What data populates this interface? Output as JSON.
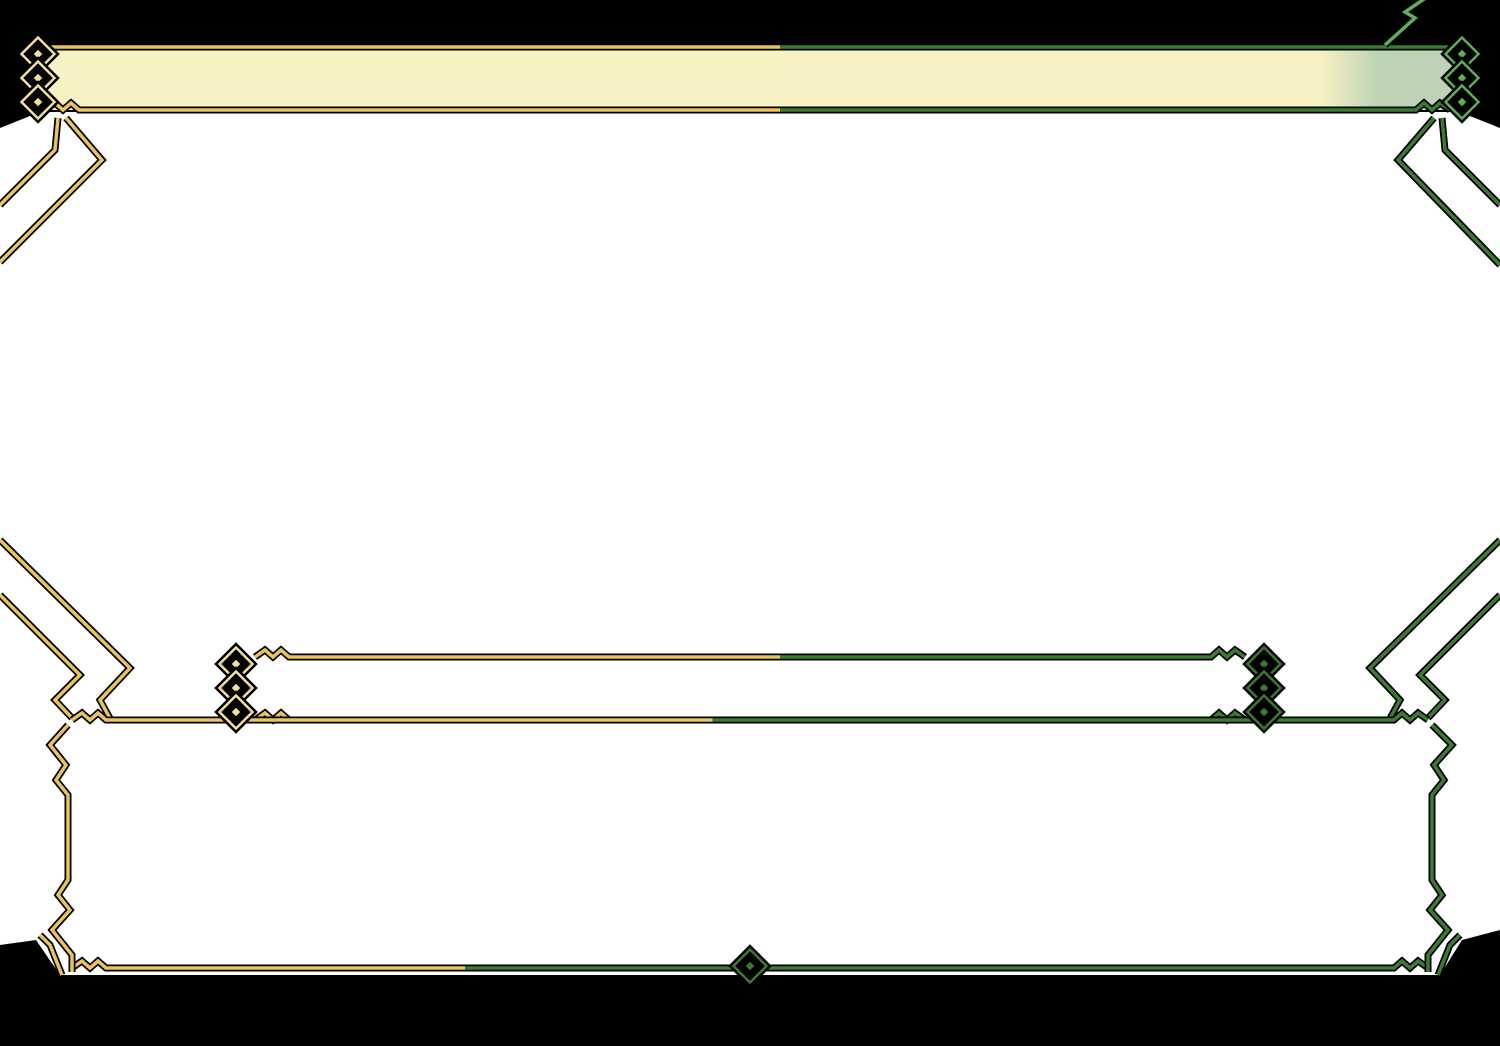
{
  "theme": {
    "background": "#000000",
    "panel": "#ffffff",
    "gold": "#e9c45c",
    "gold_light": "#f3dfa0",
    "cream": "#f7f1c3",
    "green": "#3c7a33",
    "green_light": "#5fae5a",
    "header_green": "#bcd3b8"
  },
  "icons": [
    "diamond-ornament-icon"
  ]
}
